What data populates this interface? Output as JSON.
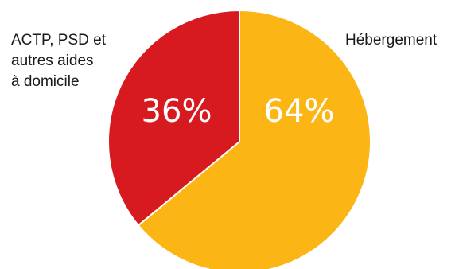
{
  "chart_data": {
    "type": "pie",
    "slices": [
      {
        "label_lines": [
          "Hébergement"
        ],
        "value": 64,
        "value_label": "64%",
        "color": "#FBB616"
      },
      {
        "label_lines": [
          "ACTP, PSD et",
          "autres aides",
          "à domicile"
        ],
        "value": 36,
        "value_label": "36%",
        "color": "#D71920"
      }
    ],
    "start": "top",
    "direction": "clockwise",
    "slice_border_color": "#ffffff"
  }
}
